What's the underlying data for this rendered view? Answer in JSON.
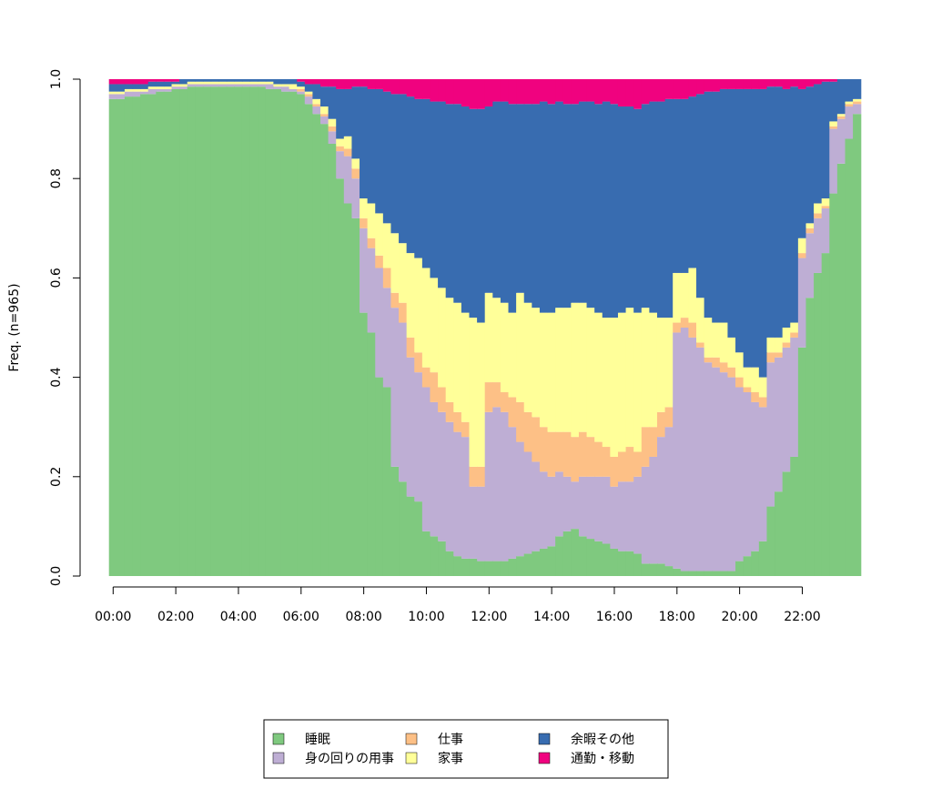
{
  "chart_data": {
    "type": "stacked_bar",
    "y_label": "Freq. (n=965)",
    "x": [
      0,
      0.25,
      0.5,
      0.75,
      1,
      1.25,
      1.5,
      1.75,
      2,
      2.25,
      2.5,
      2.75,
      3,
      3.25,
      3.5,
      3.75,
      4,
      4.25,
      4.5,
      4.75,
      5,
      5.25,
      5.5,
      5.75,
      6,
      6.25,
      6.5,
      6.75,
      7,
      7.25,
      7.5,
      7.75,
      8,
      8.25,
      8.5,
      8.75,
      9,
      9.25,
      9.5,
      9.75,
      10,
      10.25,
      10.5,
      10.75,
      11,
      11.25,
      11.5,
      11.75,
      12,
      12.25,
      12.5,
      12.75,
      13,
      13.25,
      13.5,
      13.75,
      14,
      14.25,
      14.5,
      14.75,
      15,
      15.25,
      15.5,
      15.75,
      16,
      16.25,
      16.5,
      16.75,
      17,
      17.25,
      17.5,
      17.75,
      18,
      18.25,
      18.5,
      18.75,
      19,
      19.25,
      19.5,
      19.75,
      20,
      20.25,
      20.5,
      20.75,
      21,
      21.25,
      21.5,
      21.75,
      22,
      22.25,
      22.5,
      22.75,
      23,
      23.25,
      23.5,
      23.75
    ],
    "xlim": [
      -0.125,
      23.875
    ],
    "xticks": [
      {
        "value": 0,
        "label": "00:00"
      },
      {
        "value": 2,
        "label": "02:00"
      },
      {
        "value": 4,
        "label": "04:00"
      },
      {
        "value": 6,
        "label": "06:00"
      },
      {
        "value": 8,
        "label": "08:00"
      },
      {
        "value": 10,
        "label": "10:00"
      },
      {
        "value": 12,
        "label": "12:00"
      },
      {
        "value": 14,
        "label": "14:00"
      },
      {
        "value": 16,
        "label": "16:00"
      },
      {
        "value": 18,
        "label": "18:00"
      },
      {
        "value": 20,
        "label": "20:00"
      },
      {
        "value": 22,
        "label": "22:00"
      }
    ],
    "ylim": [
      0,
      1
    ],
    "yticks": [
      {
        "value": 0,
        "label": "0.0"
      },
      0.2,
      0.4,
      0.6,
      0.8,
      {
        "value": 1,
        "label": "1.0"
      }
    ],
    "legend_position": "bottom",
    "series": [
      {
        "name": "睡眠",
        "color": "#7FC97F",
        "values": [
          0.96,
          0.96,
          0.965,
          0.965,
          0.97,
          0.97,
          0.975,
          0.975,
          0.98,
          0.98,
          0.985,
          0.985,
          0.985,
          0.985,
          0.985,
          0.985,
          0.985,
          0.985,
          0.985,
          0.985,
          0.98,
          0.98,
          0.975,
          0.975,
          0.97,
          0.95,
          0.93,
          0.91,
          0.87,
          0.8,
          0.75,
          0.72,
          0.53,
          0.49,
          0.4,
          0.38,
          0.22,
          0.19,
          0.16,
          0.15,
          0.09,
          0.08,
          0.07,
          0.05,
          0.04,
          0.035,
          0.035,
          0.03,
          0.03,
          0.03,
          0.03,
          0.035,
          0.04,
          0.045,
          0.05,
          0.055,
          0.06,
          0.08,
          0.09,
          0.095,
          0.08,
          0.075,
          0.07,
          0.065,
          0.055,
          0.05,
          0.05,
          0.045,
          0.025,
          0.025,
          0.025,
          0.02,
          0.015,
          0.01,
          0.01,
          0.01,
          0.01,
          0.01,
          0.01,
          0.01,
          0.03,
          0.04,
          0.05,
          0.07,
          0.14,
          0.17,
          0.21,
          0.24,
          0.46,
          0.56,
          0.61,
          0.65,
          0.77,
          0.83,
          0.88,
          0.93
        ]
      },
      {
        "name": "身の回りの用事",
        "color": "#BEAED4",
        "values": [
          0.01,
          0.01,
          0.01,
          0.01,
          0.005,
          0.01,
          0.005,
          0.005,
          0.005,
          0.005,
          0.005,
          0.005,
          0.005,
          0.005,
          0.005,
          0.005,
          0.005,
          0.005,
          0.005,
          0.005,
          0.01,
          0.005,
          0.01,
          0.005,
          0.005,
          0.015,
          0.015,
          0.015,
          0.025,
          0.055,
          0.095,
          0.08,
          0.17,
          0.17,
          0.22,
          0.2,
          0.32,
          0.32,
          0.28,
          0.26,
          0.29,
          0.27,
          0.26,
          0.26,
          0.25,
          0.245,
          0.145,
          0.15,
          0.3,
          0.31,
          0.3,
          0.265,
          0.23,
          0.205,
          0.18,
          0.155,
          0.14,
          0.13,
          0.11,
          0.095,
          0.12,
          0.125,
          0.13,
          0.135,
          0.125,
          0.14,
          0.14,
          0.155,
          0.195,
          0.215,
          0.255,
          0.28,
          0.475,
          0.49,
          0.47,
          0.45,
          0.42,
          0.41,
          0.4,
          0.39,
          0.35,
          0.33,
          0.3,
          0.27,
          0.29,
          0.27,
          0.25,
          0.24,
          0.18,
          0.13,
          0.11,
          0.09,
          0.13,
          0.09,
          0.065,
          0.02
        ]
      },
      {
        "name": "仕事",
        "color": "#FDC086",
        "values": [
          0,
          0,
          0,
          0,
          0,
          0,
          0,
          0,
          0,
          0,
          0,
          0,
          0,
          0,
          0,
          0,
          0,
          0,
          0,
          0,
          0,
          0,
          0,
          0,
          0.005,
          0.005,
          0.005,
          0.005,
          0.01,
          0.01,
          0.015,
          0.02,
          0.02,
          0.02,
          0.025,
          0.04,
          0.03,
          0.04,
          0.04,
          0.04,
          0.04,
          0.06,
          0.05,
          0.04,
          0.04,
          0.03,
          0.04,
          0.04,
          0.06,
          0.05,
          0.04,
          0.06,
          0.08,
          0.08,
          0.09,
          0.09,
          0.09,
          0.08,
          0.09,
          0.09,
          0.09,
          0.08,
          0.07,
          0.06,
          0.06,
          0.06,
          0.07,
          0.05,
          0.08,
          0.06,
          0.05,
          0.04,
          0.02,
          0.02,
          0.03,
          0.01,
          0.01,
          0.02,
          0.02,
          0.02,
          0.02,
          0.01,
          0.02,
          0.02,
          0.02,
          0.01,
          0.01,
          0.01,
          0.01,
          0.01,
          0.01,
          0.005,
          0.005,
          0.005,
          0.005,
          0.005
        ]
      },
      {
        "name": "家事",
        "color": "#FFFF99",
        "values": [
          0.005,
          0.005,
          0.005,
          0.005,
          0.005,
          0.005,
          0.005,
          0.005,
          0.005,
          0.005,
          0.005,
          0.005,
          0.005,
          0.005,
          0.005,
          0.005,
          0.005,
          0.005,
          0.005,
          0.005,
          0.005,
          0.005,
          0.005,
          0.01,
          0.005,
          0.005,
          0.01,
          0.015,
          0.015,
          0.015,
          0.025,
          0.02,
          0.04,
          0.07,
          0.085,
          0.09,
          0.12,
          0.12,
          0.17,
          0.19,
          0.2,
          0.19,
          0.2,
          0.21,
          0.22,
          0.22,
          0.3,
          0.29,
          0.18,
          0.17,
          0.18,
          0.17,
          0.22,
          0.22,
          0.22,
          0.23,
          0.24,
          0.25,
          0.25,
          0.27,
          0.26,
          0.26,
          0.26,
          0.26,
          0.28,
          0.28,
          0.28,
          0.28,
          0.24,
          0.23,
          0.19,
          0.18,
          0.1,
          0.09,
          0.11,
          0.09,
          0.08,
          0.07,
          0.08,
          0.06,
          0.05,
          0.04,
          0.05,
          0.04,
          0.03,
          0.03,
          0.03,
          0.02,
          0.03,
          0.01,
          0.02,
          0.015,
          0.01,
          0.005,
          0.005,
          0.005
        ]
      },
      {
        "name": "余暇その他",
        "color": "#386CB0",
        "values": [
          0.015,
          0.015,
          0.01,
          0.01,
          0.01,
          0.01,
          0.01,
          0.01,
          0.005,
          0.01,
          0.005,
          0.005,
          0.005,
          0.005,
          0.005,
          0.005,
          0.005,
          0.005,
          0.005,
          0.005,
          0.005,
          0.01,
          0.01,
          0.01,
          0.01,
          0.015,
          0.03,
          0.04,
          0.065,
          0.1,
          0.095,
          0.145,
          0.225,
          0.23,
          0.25,
          0.265,
          0.28,
          0.3,
          0.315,
          0.32,
          0.34,
          0.355,
          0.375,
          0.39,
          0.4,
          0.415,
          0.42,
          0.43,
          0.375,
          0.395,
          0.405,
          0.42,
          0.38,
          0.4,
          0.41,
          0.425,
          0.42,
          0.415,
          0.41,
          0.4,
          0.405,
          0.415,
          0.42,
          0.435,
          0.43,
          0.415,
          0.405,
          0.41,
          0.41,
          0.425,
          0.435,
          0.44,
          0.35,
          0.35,
          0.345,
          0.41,
          0.455,
          0.465,
          0.47,
          0.5,
          0.53,
          0.56,
          0.56,
          0.58,
          0.505,
          0.505,
          0.48,
          0.475,
          0.3,
          0.275,
          0.24,
          0.235,
          0.08,
          0.07,
          0.045,
          0.04
        ]
      },
      {
        "name": "通勤・移動",
        "color": "#F0027F",
        "values": [
          0.01,
          0.01,
          0.01,
          0.01,
          0.01,
          0.005,
          0.005,
          0.005,
          0.005,
          0,
          0,
          0,
          0,
          0,
          0,
          0,
          0,
          0,
          0,
          0,
          0,
          0,
          0,
          0,
          0.005,
          0.01,
          0.01,
          0.015,
          0.015,
          0.02,
          0.02,
          0.015,
          0.015,
          0.02,
          0.02,
          0.025,
          0.03,
          0.03,
          0.035,
          0.04,
          0.04,
          0.045,
          0.045,
          0.05,
          0.05,
          0.055,
          0.06,
          0.06,
          0.055,
          0.045,
          0.045,
          0.05,
          0.05,
          0.05,
          0.05,
          0.045,
          0.05,
          0.045,
          0.05,
          0.05,
          0.045,
          0.045,
          0.05,
          0.045,
          0.05,
          0.055,
          0.055,
          0.06,
          0.05,
          0.045,
          0.045,
          0.04,
          0.04,
          0.04,
          0.035,
          0.03,
          0.025,
          0.025,
          0.02,
          0.02,
          0.02,
          0.02,
          0.02,
          0.02,
          0.015,
          0.015,
          0.02,
          0.015,
          0.02,
          0.015,
          0.01,
          0.005,
          0.005,
          0,
          0,
          0
        ]
      }
    ]
  }
}
